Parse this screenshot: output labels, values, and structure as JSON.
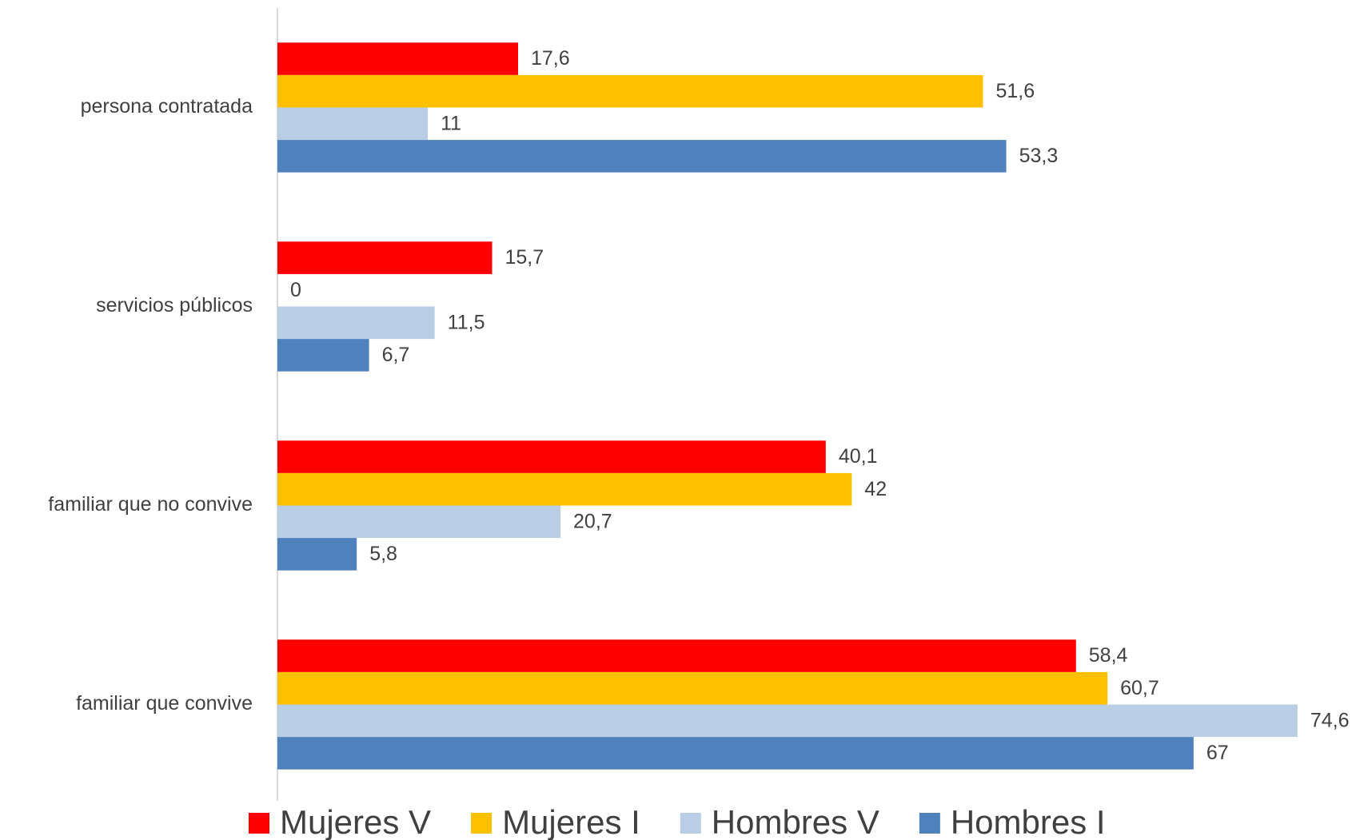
{
  "chart_data": {
    "type": "hbar",
    "categories": [
      "persona contratada",
      "servicios públicos",
      "familiar que no convive",
      "familiar que convive"
    ],
    "series": [
      {
        "name": "Mujeres V",
        "color": "#ff0000",
        "values": [
          17.6,
          15.7,
          40.1,
          58.4
        ],
        "value_labels": [
          "17,6",
          "15,7",
          "40,1",
          "58,4"
        ]
      },
      {
        "name": "Mujeres I",
        "color": "#ffc000",
        "values": [
          51.6,
          0,
          42,
          60.7
        ],
        "value_labels": [
          "51,6",
          "0",
          "42",
          "60,7"
        ]
      },
      {
        "name": "Hombres V",
        "color": "#b9cde5",
        "values": [
          11,
          11.5,
          20.7,
          74.6
        ],
        "value_labels": [
          "11",
          "11,5",
          "20,7",
          "74,6"
        ]
      },
      {
        "name": "Hombres I",
        "color": "#4f81bd",
        "values": [
          53.3,
          6.7,
          5.8,
          67
        ],
        "value_labels": [
          "53,3",
          "6,7",
          "5,8",
          "67"
        ]
      }
    ],
    "xlim": [
      0,
      78
    ],
    "legend": "bottom"
  }
}
